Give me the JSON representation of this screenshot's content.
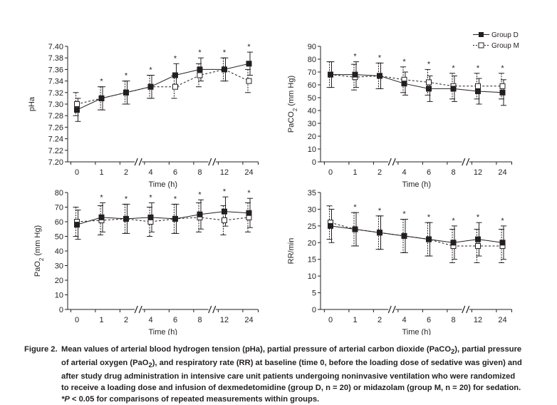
{
  "legend": {
    "entries": [
      {
        "name": "Group D",
        "marker": "filled-square"
      },
      {
        "name": "Group M",
        "marker": "open-square"
      }
    ]
  },
  "chart_data": [
    {
      "id": "pha",
      "type": "line",
      "ylabel_parts": [
        {
          "t": "pHa"
        }
      ],
      "xlabel": "Time (h)",
      "categories": [
        "0",
        "1",
        "2",
        "4",
        "6",
        "8",
        "12",
        "24"
      ],
      "axis_breaks_after": [
        "2",
        "8"
      ],
      "ylim": [
        7.2,
        7.4
      ],
      "yticks": [
        "7.20",
        "7.22",
        "7.24",
        "7.26",
        "7.28",
        "7.30",
        "7.32",
        "7.34",
        "7.36",
        "7.38",
        "7.40"
      ],
      "significance_marker": "*",
      "significant_at": [
        "1",
        "2",
        "4",
        "6",
        "8",
        "12",
        "24"
      ],
      "series": [
        {
          "name": "Group D",
          "values": [
            7.29,
            7.31,
            7.32,
            7.33,
            7.35,
            7.36,
            7.36,
            7.37
          ],
          "error": [
            0.02,
            0.02,
            0.02,
            0.02,
            0.02,
            0.02,
            0.02,
            0.02
          ]
        },
        {
          "name": "Group M",
          "values": [
            7.3,
            7.31,
            7.32,
            7.33,
            7.33,
            7.35,
            7.36,
            7.34
          ],
          "error": [
            0.02,
            0.02,
            0.02,
            0.02,
            0.02,
            0.02,
            0.02,
            0.02
          ]
        }
      ]
    },
    {
      "id": "paco2",
      "type": "line",
      "ylabel_parts": [
        {
          "t": "PaCO"
        },
        {
          "t": "2",
          "sub": true
        },
        {
          "t": " (mm Hg)"
        }
      ],
      "xlabel": "Time (h)",
      "categories": [
        "0",
        "1",
        "2",
        "4",
        "6",
        "8",
        "12",
        "24"
      ],
      "axis_breaks_after": [
        "2",
        "8"
      ],
      "ylim": [
        0,
        90
      ],
      "yticks": [
        "0",
        "10",
        "20",
        "30",
        "40",
        "50",
        "60",
        "70",
        "80",
        "90"
      ],
      "significance_marker": "*",
      "significant_at": [
        "1",
        "2",
        "4",
        "6",
        "8",
        "12",
        "24"
      ],
      "series": [
        {
          "name": "Group D",
          "values": [
            68,
            68,
            67,
            61,
            57,
            57,
            55,
            54
          ],
          "error": [
            10,
            10,
            10,
            9,
            10,
            10,
            10,
            10
          ]
        },
        {
          "name": "Group M",
          "values": [
            68,
            66,
            67,
            64,
            62,
            59,
            59,
            59
          ],
          "error": [
            10,
            10,
            10,
            10,
            10,
            10,
            10,
            10
          ]
        }
      ]
    },
    {
      "id": "pao2",
      "type": "line",
      "ylabel_parts": [
        {
          "t": "PaO"
        },
        {
          "t": "2",
          "sub": true
        },
        {
          "t": " (mm Hg)"
        }
      ],
      "xlabel": "Time (h)",
      "categories": [
        "0",
        "1",
        "2",
        "4",
        "6",
        "8",
        "12",
        "24"
      ],
      "axis_breaks_after": [
        "2",
        "8"
      ],
      "ylim": [
        0,
        80
      ],
      "yticks": [
        "0",
        "10",
        "20",
        "30",
        "40",
        "50",
        "60",
        "70",
        "80"
      ],
      "significance_marker": "*",
      "significant_at": [
        "1",
        "2",
        "4",
        "6",
        "8",
        "12",
        "24"
      ],
      "series": [
        {
          "name": "Group D",
          "values": [
            58,
            63,
            62,
            63,
            62,
            65,
            67,
            66
          ],
          "error": [
            10,
            10,
            10,
            10,
            10,
            10,
            10,
            10
          ]
        },
        {
          "name": "Group M",
          "values": [
            60,
            61,
            62,
            60,
            62,
            63,
            61,
            63
          ],
          "error": [
            10,
            10,
            10,
            10,
            10,
            10,
            10,
            10
          ]
        }
      ]
    },
    {
      "id": "rr",
      "type": "line",
      "ylabel_parts": [
        {
          "t": "RR/min"
        }
      ],
      "xlabel": "Time (h)",
      "categories": [
        "0",
        "1",
        "2",
        "4",
        "6",
        "8",
        "12",
        "24"
      ],
      "axis_breaks_after": [
        "2",
        "8"
      ],
      "ylim": [
        0,
        35
      ],
      "yticks": [
        "0",
        "5",
        "10",
        "15",
        "20",
        "25",
        "30",
        "35"
      ],
      "significance_marker": "*",
      "significant_at": [
        "1",
        "2",
        "4",
        "6",
        "8",
        "12",
        "24"
      ],
      "series": [
        {
          "name": "Group D",
          "values": [
            25,
            24,
            23,
            22,
            21,
            20,
            21,
            20
          ],
          "error": [
            5,
            5,
            5,
            5,
            5,
            5,
            5,
            5
          ]
        },
        {
          "name": "Group M",
          "values": [
            26,
            24,
            23,
            22,
            21,
            19,
            19,
            19
          ],
          "error": [
            5,
            5,
            5,
            5,
            5,
            5,
            5,
            5
          ]
        }
      ]
    }
  ],
  "caption": {
    "label": "Figure 2.",
    "parts": [
      {
        "t": "Mean values of arterial blood hydrogen tension (pHa), partial pressure of arterial carbon dioxide (PaCO"
      },
      {
        "t": "2",
        "sub": true
      },
      {
        "t": "), partial pressure of arterial oxygen (PaO"
      },
      {
        "t": "2",
        "sub": true
      },
      {
        "t": "), and respiratory rate (RR) at baseline (time 0, before the loading dose of sedative was given) and after study drug administration in intensive care unit patients undergoing noninvasive ventilation who were randomized to receive a loading dose and infusion of dexmedetomidine (group D, n = 20) or midazolam (group M, n = 20) for sedation. "
      },
      {
        "t": "*",
        "i": true
      },
      {
        "t": "P",
        "i": true
      },
      {
        "t": " < 0.05 for comparisons of repeated measurements within groups."
      }
    ]
  }
}
